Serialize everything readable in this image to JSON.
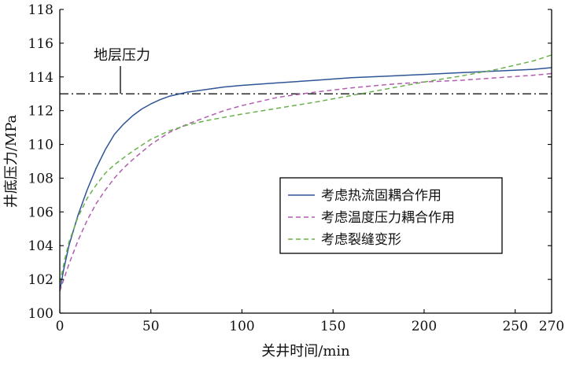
{
  "chart_data": {
    "type": "line",
    "xlabel": "关井时间/min",
    "ylabel": "井底压力/MPa",
    "xlim": [
      0,
      270
    ],
    "ylim": [
      100,
      118
    ],
    "x_ticks": [
      0,
      50,
      100,
      150,
      200,
      250,
      270
    ],
    "y_ticks": [
      100,
      102,
      104,
      106,
      108,
      110,
      112,
      114,
      116,
      118
    ],
    "grid": false,
    "legend_position": "center-right",
    "reference_line": {
      "label": "地层压力",
      "y": 113.0,
      "style": "dash-dot",
      "color": "#000000"
    },
    "series": [
      {
        "name": "考虑热流固耦合作用",
        "color": "#2f5597",
        "dash": "solid",
        "x": [
          0,
          2,
          5,
          10,
          15,
          20,
          25,
          30,
          35,
          40,
          45,
          50,
          55,
          60,
          70,
          80,
          90,
          100,
          120,
          140,
          160,
          180,
          200,
          220,
          240,
          260,
          270
        ],
        "y": [
          101.3,
          102.5,
          104.0,
          105.8,
          107.3,
          108.6,
          109.7,
          110.6,
          111.2,
          111.7,
          112.1,
          112.4,
          112.65,
          112.85,
          113.1,
          113.25,
          113.4,
          113.5,
          113.65,
          113.8,
          113.95,
          114.05,
          114.15,
          114.25,
          114.35,
          114.45,
          114.55
        ]
      },
      {
        "name": "考虑温度压力耦合作用",
        "color": "#b05fb0",
        "dash": "dashed",
        "x": [
          0,
          5,
          10,
          15,
          20,
          25,
          30,
          35,
          40,
          50,
          60,
          70,
          80,
          90,
          100,
          120,
          140,
          160,
          180,
          200,
          220,
          240,
          260,
          270
        ],
        "y": [
          101.3,
          102.9,
          104.3,
          105.5,
          106.5,
          107.3,
          108.0,
          108.6,
          109.1,
          110.0,
          110.7,
          111.2,
          111.6,
          112.0,
          112.3,
          112.8,
          113.1,
          113.35,
          113.55,
          113.7,
          113.8,
          113.95,
          114.1,
          114.2
        ]
      },
      {
        "name": "考虑裂缝变形",
        "color": "#6ab04c",
        "dash": "dashed",
        "x": [
          0,
          3,
          5,
          10,
          15,
          20,
          25,
          30,
          35,
          40,
          50,
          60,
          70,
          80,
          90,
          100,
          120,
          140,
          160,
          180,
          200,
          220,
          240,
          260,
          270
        ],
        "y": [
          101.8,
          103.3,
          104.2,
          105.7,
          106.8,
          107.6,
          108.3,
          108.8,
          109.2,
          109.6,
          110.3,
          110.8,
          111.15,
          111.4,
          111.6,
          111.8,
          112.15,
          112.5,
          112.9,
          113.3,
          113.7,
          114.05,
          114.45,
          114.95,
          115.3
        ]
      }
    ]
  }
}
